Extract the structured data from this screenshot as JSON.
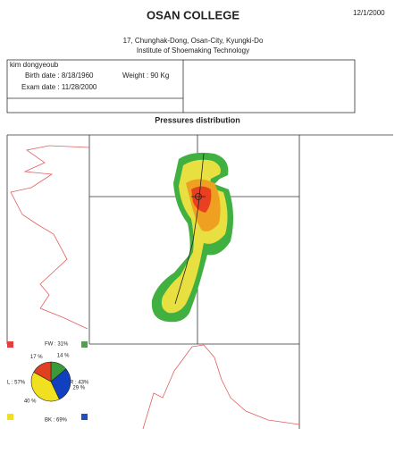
{
  "header": {
    "title": "OSAN COLLEGE",
    "date": "12/1/2000",
    "address": "17, Chunghak-Dong, Osan-City, Kyungki-Do",
    "institute": "Institute of Shoemaking Technology"
  },
  "patient": {
    "name": "kim dongyeoub",
    "birth_date": "Birth date :  8/18/1960",
    "weight": "Weight : 90 Kg",
    "exam_date": "Exam date :  11/28/2000"
  },
  "section_title": "Pressures distribution",
  "pie": {
    "values": [
      14,
      29,
      40,
      17
    ],
    "value_labels": [
      "14 %",
      "29 %",
      "40 %",
      "17 %"
    ],
    "colors": [
      "#3a9a3a",
      "#1040c0",
      "#f0e020",
      "#e04020"
    ]
  },
  "quadrants": {
    "front": "FW : 31%",
    "right": "R : 43%",
    "back": "BK : 69%",
    "left": "L : 57%"
  }
}
